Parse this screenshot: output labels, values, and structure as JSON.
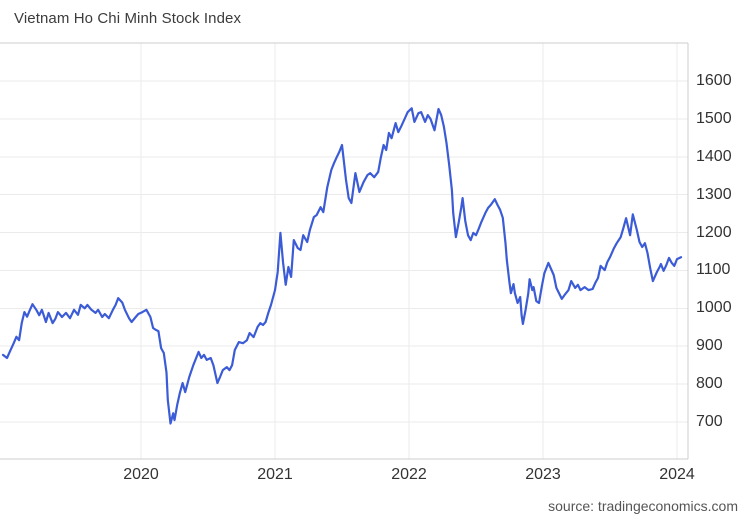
{
  "header": {
    "title": "Vietnam Ho Chi Minh Stock Index"
  },
  "footer": {
    "source": "source: tradingeconomics.com"
  },
  "chart_data": {
    "type": "line",
    "title": "Vietnam Ho Chi Minh Stock Index",
    "xlabel": "",
    "ylabel": "",
    "legend": "none",
    "grid": true,
    "line_color": "#3b5cd6",
    "grid_color": "#ebebeb",
    "border_color": "#cdcdcd",
    "x_ticks": [
      "2020",
      "2021",
      "2022",
      "2023",
      "2024"
    ],
    "y_ticks": [
      1600,
      1500,
      1400,
      1300,
      1200,
      1100,
      1000,
      900,
      800,
      700
    ],
    "xlim": [
      2018.97,
      2024.06
    ],
    "ylim": [
      600,
      1710
    ],
    "series": [
      {
        "name": "Vietnam Ho Chi Minh Stock Index",
        "points": [
          [
            2018.97,
            877
          ],
          [
            2019.0,
            869
          ],
          [
            2019.02,
            885
          ],
          [
            2019.05,
            908
          ],
          [
            2019.07,
            925
          ],
          [
            2019.09,
            916
          ],
          [
            2019.11,
            962
          ],
          [
            2019.13,
            990
          ],
          [
            2019.15,
            978
          ],
          [
            2019.17,
            995
          ],
          [
            2019.19,
            1011
          ],
          [
            2019.22,
            995
          ],
          [
            2019.24,
            982
          ],
          [
            2019.26,
            996
          ],
          [
            2019.29,
            964
          ],
          [
            2019.31,
            988
          ],
          [
            2019.34,
            961
          ],
          [
            2019.36,
            972
          ],
          [
            2019.38,
            990
          ],
          [
            2019.41,
            977
          ],
          [
            2019.44,
            988
          ],
          [
            2019.47,
            974
          ],
          [
            2019.5,
            996
          ],
          [
            2019.53,
            983
          ],
          [
            2019.55,
            1009
          ],
          [
            2019.58,
            1000
          ],
          [
            2019.6,
            1009
          ],
          [
            2019.63,
            996
          ],
          [
            2019.66,
            988
          ],
          [
            2019.68,
            996
          ],
          [
            2019.71,
            977
          ],
          [
            2019.73,
            985
          ],
          [
            2019.76,
            974
          ],
          [
            2019.79,
            996
          ],
          [
            2019.81,
            1009
          ],
          [
            2019.83,
            1027
          ],
          [
            2019.86,
            1015
          ],
          [
            2019.88,
            996
          ],
          [
            2019.91,
            974
          ],
          [
            2019.93,
            964
          ],
          [
            2019.96,
            977
          ],
          [
            2019.98,
            985
          ],
          [
            2020.01,
            990
          ],
          [
            2020.04,
            996
          ],
          [
            2020.07,
            977
          ],
          [
            2020.09,
            948
          ],
          [
            2020.11,
            943
          ],
          [
            2020.13,
            940
          ],
          [
            2020.15,
            895
          ],
          [
            2020.17,
            882
          ],
          [
            2020.19,
            830
          ],
          [
            2020.2,
            758
          ],
          [
            2020.22,
            696
          ],
          [
            2020.24,
            723
          ],
          [
            2020.25,
            705
          ],
          [
            2020.27,
            745
          ],
          [
            2020.29,
            777
          ],
          [
            2020.31,
            803
          ],
          [
            2020.33,
            779
          ],
          [
            2020.36,
            819
          ],
          [
            2020.39,
            850
          ],
          [
            2020.43,
            885
          ],
          [
            2020.45,
            869
          ],
          [
            2020.47,
            877
          ],
          [
            2020.49,
            864
          ],
          [
            2020.52,
            869
          ],
          [
            2020.54,
            850
          ],
          [
            2020.57,
            803
          ],
          [
            2020.59,
            819
          ],
          [
            2020.61,
            837
          ],
          [
            2020.64,
            845
          ],
          [
            2020.66,
            837
          ],
          [
            2020.68,
            850
          ],
          [
            2020.7,
            890
          ],
          [
            2020.73,
            911
          ],
          [
            2020.76,
            908
          ],
          [
            2020.79,
            916
          ],
          [
            2020.81,
            935
          ],
          [
            2020.84,
            924
          ],
          [
            2020.87,
            951
          ],
          [
            2020.89,
            961
          ],
          [
            2020.91,
            956
          ],
          [
            2020.93,
            964
          ],
          [
            2020.95,
            988
          ],
          [
            2020.97,
            1009
          ],
          [
            2021.0,
            1048
          ],
          [
            2021.02,
            1096
          ],
          [
            2021.04,
            1199
          ],
          [
            2021.06,
            1120
          ],
          [
            2021.08,
            1062
          ],
          [
            2021.1,
            1109
          ],
          [
            2021.12,
            1083
          ],
          [
            2021.14,
            1180
          ],
          [
            2021.17,
            1159
          ],
          [
            2021.19,
            1154
          ],
          [
            2021.21,
            1193
          ],
          [
            2021.24,
            1175
          ],
          [
            2021.26,
            1207
          ],
          [
            2021.29,
            1241
          ],
          [
            2021.31,
            1246
          ],
          [
            2021.34,
            1267
          ],
          [
            2021.36,
            1254
          ],
          [
            2021.39,
            1320
          ],
          [
            2021.42,
            1365
          ],
          [
            2021.44,
            1383
          ],
          [
            2021.46,
            1399
          ],
          [
            2021.48,
            1413
          ],
          [
            2021.5,
            1431
          ],
          [
            2021.53,
            1339
          ],
          [
            2021.55,
            1291
          ],
          [
            2021.57,
            1278
          ],
          [
            2021.6,
            1357
          ],
          [
            2021.63,
            1307
          ],
          [
            2021.66,
            1333
          ],
          [
            2021.69,
            1352
          ],
          [
            2021.71,
            1357
          ],
          [
            2021.74,
            1346
          ],
          [
            2021.77,
            1360
          ],
          [
            2021.79,
            1399
          ],
          [
            2021.81,
            1431
          ],
          [
            2021.83,
            1418
          ],
          [
            2021.85,
            1463
          ],
          [
            2021.87,
            1449
          ],
          [
            2021.9,
            1489
          ],
          [
            2021.92,
            1465
          ],
          [
            2021.94,
            1479
          ],
          [
            2021.97,
            1502
          ],
          [
            2021.99,
            1518
          ],
          [
            2022.02,
            1528
          ],
          [
            2022.04,
            1492
          ],
          [
            2022.07,
            1515
          ],
          [
            2022.09,
            1518
          ],
          [
            2022.12,
            1492
          ],
          [
            2022.14,
            1510
          ],
          [
            2022.16,
            1500
          ],
          [
            2022.19,
            1470
          ],
          [
            2022.22,
            1526
          ],
          [
            2022.24,
            1510
          ],
          [
            2022.26,
            1479
          ],
          [
            2022.28,
            1436
          ],
          [
            2022.3,
            1378
          ],
          [
            2022.32,
            1312
          ],
          [
            2022.33,
            1252
          ],
          [
            2022.35,
            1188
          ],
          [
            2022.37,
            1225
          ],
          [
            2022.39,
            1267
          ],
          [
            2022.4,
            1291
          ],
          [
            2022.42,
            1230
          ],
          [
            2022.44,
            1193
          ],
          [
            2022.46,
            1180
          ],
          [
            2022.48,
            1199
          ],
          [
            2022.5,
            1193
          ],
          [
            2022.52,
            1210
          ],
          [
            2022.54,
            1228
          ],
          [
            2022.57,
            1252
          ],
          [
            2022.59,
            1265
          ],
          [
            2022.61,
            1273
          ],
          [
            2022.64,
            1288
          ],
          [
            2022.66,
            1273
          ],
          [
            2022.68,
            1260
          ],
          [
            2022.7,
            1239
          ],
          [
            2022.72,
            1172
          ],
          [
            2022.73,
            1128
          ],
          [
            2022.75,
            1067
          ],
          [
            2022.76,
            1040
          ],
          [
            2022.78,
            1064
          ],
          [
            2022.79,
            1040
          ],
          [
            2022.81,
            1014
          ],
          [
            2022.83,
            1030
          ],
          [
            2022.84,
            982
          ],
          [
            2022.85,
            959
          ],
          [
            2022.87,
            996
          ],
          [
            2022.89,
            1040
          ],
          [
            2022.9,
            1077
          ],
          [
            2022.92,
            1048
          ],
          [
            2022.93,
            1056
          ],
          [
            2022.95,
            1019
          ],
          [
            2022.97,
            1014
          ],
          [
            2022.99,
            1056
          ],
          [
            2023.01,
            1093
          ],
          [
            2023.04,
            1120
          ],
          [
            2023.08,
            1088
          ],
          [
            2023.1,
            1054
          ],
          [
            2023.14,
            1025
          ],
          [
            2023.16,
            1035
          ],
          [
            2023.19,
            1048
          ],
          [
            2023.21,
            1072
          ],
          [
            2023.24,
            1054
          ],
          [
            2023.26,
            1062
          ],
          [
            2023.28,
            1048
          ],
          [
            2023.31,
            1056
          ],
          [
            2023.34,
            1048
          ],
          [
            2023.37,
            1051
          ],
          [
            2023.39,
            1067
          ],
          [
            2023.41,
            1080
          ],
          [
            2023.43,
            1112
          ],
          [
            2023.46,
            1101
          ],
          [
            2023.48,
            1122
          ],
          [
            2023.5,
            1135
          ],
          [
            2023.53,
            1159
          ],
          [
            2023.55,
            1172
          ],
          [
            2023.58,
            1188
          ],
          [
            2023.6,
            1212
          ],
          [
            2023.62,
            1238
          ],
          [
            2023.65,
            1193
          ],
          [
            2023.67,
            1248
          ],
          [
            2023.7,
            1207
          ],
          [
            2023.72,
            1175
          ],
          [
            2023.74,
            1162
          ],
          [
            2023.76,
            1172
          ],
          [
            2023.78,
            1146
          ],
          [
            2023.8,
            1106
          ],
          [
            2023.82,
            1072
          ],
          [
            2023.85,
            1096
          ],
          [
            2023.87,
            1109
          ],
          [
            2023.88,
            1117
          ],
          [
            2023.9,
            1099
          ],
          [
            2023.92,
            1114
          ],
          [
            2023.94,
            1133
          ],
          [
            2023.96,
            1120
          ],
          [
            2023.98,
            1112
          ],
          [
            2024.0,
            1130
          ],
          [
            2024.03,
            1135
          ]
        ]
      }
    ]
  }
}
